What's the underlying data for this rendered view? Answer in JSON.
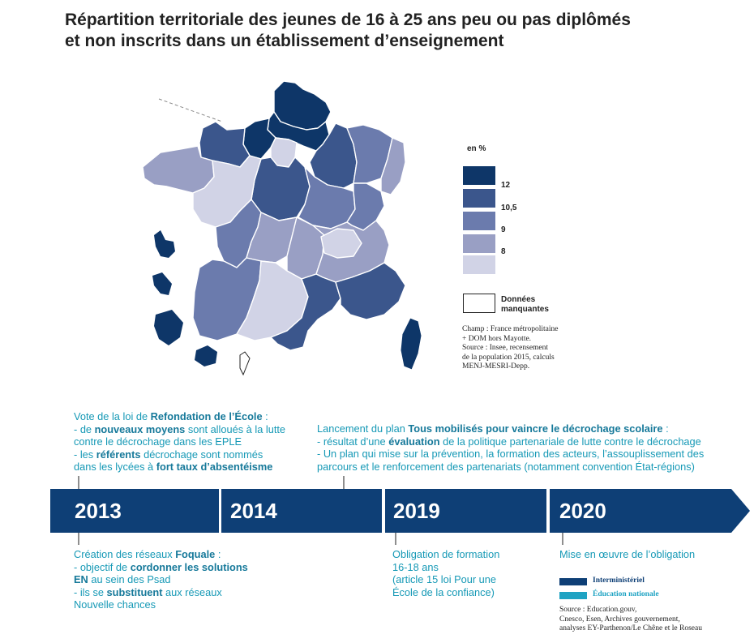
{
  "title": {
    "line1": "Répartition territoriale des jeunes de 16 à 25 ans peu ou pas diplômés",
    "line2": "et non inscrits dans un établissement d’enseignement"
  },
  "colors": {
    "class_12": "#0e3668",
    "class_10_5": "#3b568c",
    "class_9": "#6b7bad",
    "class_8": "#999fc4",
    "class_below_8": "#d1d3e6",
    "interministeriel": "#0e3f76",
    "education_nationale": "#1fa3c3",
    "timeline_bar": "#0e3f76",
    "annotation_text": "#1699b6"
  },
  "legend": {
    "unit": "en %",
    "classes": [
      {
        "label": "12",
        "color_key": "class_12"
      },
      {
        "label": "10,5",
        "color_key": "class_10_5"
      },
      {
        "label": "9",
        "color_key": "class_9"
      },
      {
        "label": "8",
        "color_key": "class_8"
      },
      {
        "label": "",
        "color_key": "class_below_8"
      }
    ],
    "missing_line1": "Données",
    "missing_line2": "manquantes"
  },
  "map_source": {
    "line1": "Champ : France métropolitaine",
    "line2": "+ DOM hors Mayotte.",
    "line3": "Source : Insee, recensement",
    "line4": "de la population 2015, calculs",
    "line5": "MENJ-MESRI-Depp."
  },
  "timeline": {
    "years": [
      "2013",
      "2014",
      "2019",
      "2020"
    ],
    "annotations": {
      "a2013_top": {
        "l1_pre": "Vote de la loi de ",
        "l1_bold": "Refondation de l’École",
        "l1_post": " :",
        "l2_pre": "- de ",
        "l2_bold": "nouveaux moyens",
        "l2_post": " sont alloués à la lutte",
        "l3": "contre le décrochage dans les EPLE",
        "l4_pre": "- les ",
        "l4_bold": "référents",
        "l4_post": " décrochage sont nommés",
        "l5_pre": "dans les lycées à ",
        "l5_bold": "fort taux d’absentéisme"
      },
      "a2013_bottom": {
        "l1_pre": "Création des réseaux ",
        "l1_bold": "Foquale",
        "l1_post": " :",
        "l2_pre": "- objectif de ",
        "l2_bold": "cordonner les solutions",
        "l3_bold": "EN",
        "l3_post": " au sein des Psad",
        "l4_pre": "- ils se ",
        "l4_bold": "substituent",
        "l4_post": " aux réseaux",
        "l5": "Nouvelle chances"
      },
      "a2014_top": {
        "l1_pre": "Lancement du plan ",
        "l1_bold": "Tous mobilisés pour vaincre le décrochage scolaire",
        "l1_post": " :",
        "l2_pre": "- résultat d’une ",
        "l2_bold": "évaluation",
        "l2_post": " de la politique partenariale de lutte contre le décrochage",
        "l3": "- Un plan qui mise sur la prévention, la formation des acteurs, l’assouplissement des",
        "l4": "parcours et le renforcement des partenariats (notamment convention État-régions)"
      },
      "a2019_bottom": {
        "l1": "Obligation de formation",
        "l2": "16-18 ans",
        "l3": "(article 15 loi Pour une",
        "l4": "École de la confiance)"
      },
      "a2020_bottom": {
        "l1": "Mise en œuvre de l’obligation"
      }
    },
    "legend": {
      "interministeriel": "Interministériel",
      "education_nationale": "Éducation nationale"
    },
    "source": {
      "line1": "Source : Education.gouv,",
      "line2": "Cnesco, Esen, Archives gouvernement,",
      "line3": "analyses EY-Parthenon/Le Chêne et le Roseau"
    }
  }
}
